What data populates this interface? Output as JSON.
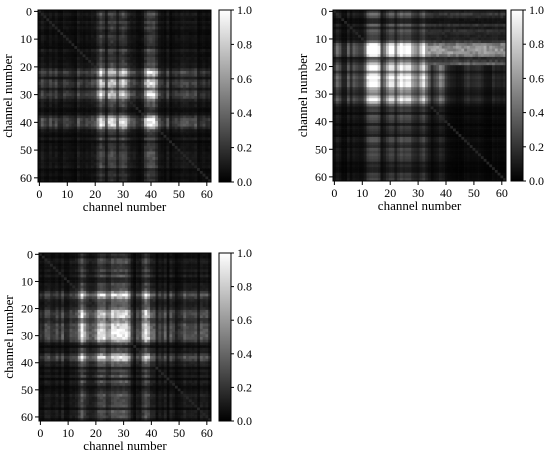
{
  "chart_data": [
    {
      "type": "heatmap",
      "panel": "top-left",
      "xlabel": "channel number",
      "ylabel": "channel number",
      "x_ticks": [
        0,
        10,
        20,
        30,
        40,
        50,
        60
      ],
      "y_ticks": [
        0,
        10,
        20,
        30,
        40,
        50,
        60
      ],
      "xlim": [
        0,
        62
      ],
      "ylim": [
        0,
        62
      ],
      "colorbar": {
        "ticks": [
          "1.0",
          "0.8",
          "0.6",
          "0.4",
          "0.2",
          "0.0"
        ],
        "range": [
          0,
          1
        ],
        "colormap": "gray"
      },
      "bright_channels": [
        22,
        26,
        30,
        39,
        41
      ],
      "pattern": "symmetric"
    },
    {
      "type": "heatmap",
      "panel": "top-right",
      "xlabel": "channel number",
      "ylabel": "channel number",
      "x_ticks": [
        0,
        10,
        20,
        30,
        40,
        50,
        60
      ],
      "y_ticks": [
        0,
        10,
        20,
        30,
        40,
        50,
        60
      ],
      "xlim": [
        0,
        62
      ],
      "ylim": [
        0,
        62
      ],
      "colorbar": {
        "ticks": [
          "1.0",
          "0.8",
          "0.6",
          "0.4",
          "0.2",
          "0.0"
        ],
        "range": [
          0,
          1
        ],
        "colormap": "gray"
      },
      "bright_channels": [
        13,
        15,
        20,
        24,
        27,
        32
      ],
      "pattern": "asymmetric"
    },
    {
      "type": "heatmap",
      "panel": "bottom-left",
      "xlabel": "channel number",
      "ylabel": "channel number",
      "x_ticks": [
        0,
        10,
        20,
        30,
        40,
        50,
        60
      ],
      "y_ticks": [
        0,
        10,
        20,
        30,
        40,
        50,
        60
      ],
      "xlim": [
        0,
        62
      ],
      "ylim": [
        0,
        62
      ],
      "colorbar": {
        "ticks": [
          "1.0",
          "0.8",
          "0.6",
          "0.4",
          "0.2",
          "0.0"
        ],
        "range": [
          0,
          1
        ],
        "colormap": "gray"
      },
      "bright_channels": [
        15,
        22,
        26,
        29,
        31,
        38
      ],
      "pattern": "symmetric"
    }
  ]
}
